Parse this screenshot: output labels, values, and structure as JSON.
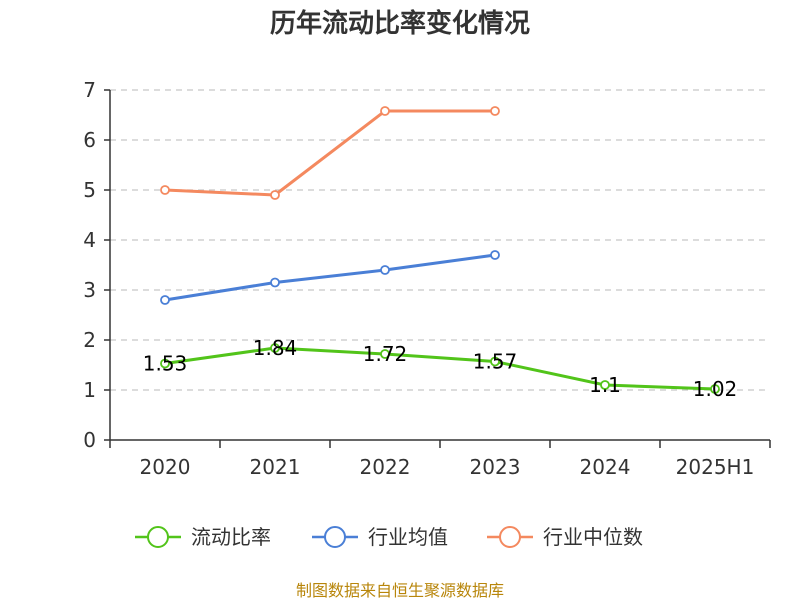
{
  "chart_data": {
    "type": "line",
    "title": "历年流动比率变化情况",
    "categories": [
      "2020",
      "2021",
      "2022",
      "2023",
      "2024",
      "2025H1"
    ],
    "y_ticks": [
      "0",
      "1",
      "2",
      "3",
      "4",
      "5",
      "6",
      "7"
    ],
    "ylim": [
      0,
      7
    ],
    "grid": true,
    "legend_position": "bottom",
    "series": [
      {
        "name": "流动比率",
        "color": "#52c41a",
        "values": [
          1.53,
          1.84,
          1.72,
          1.57,
          1.1,
          1.02
        ],
        "labels": [
          "1.53",
          "1.84",
          "1.72",
          "1.57",
          "1.1",
          "1.02"
        ]
      },
      {
        "name": "行业均值",
        "color": "#4a7fd6",
        "values": [
          2.8,
          3.15,
          3.4,
          3.7,
          null,
          null
        ]
      },
      {
        "name": "行业中位数",
        "color": "#f4895f",
        "values": [
          5.0,
          4.9,
          6.58,
          6.58,
          null,
          null
        ]
      }
    ]
  },
  "source_text": "制图数据来自恒生聚源数据库"
}
